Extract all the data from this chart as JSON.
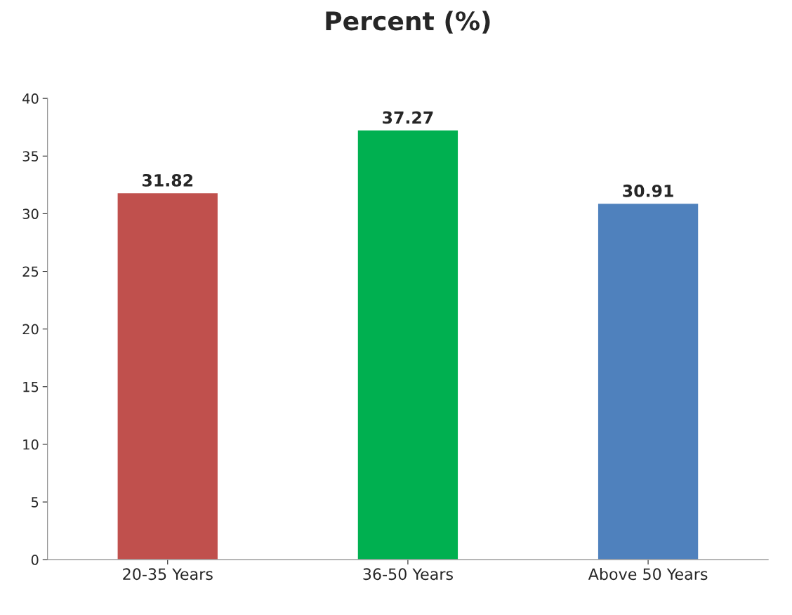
{
  "chart_data": {
    "type": "bar",
    "title": "Percent (%)",
    "categories": [
      "20-35 Years",
      "36-50 Years",
      "Above 50 Years"
    ],
    "values": [
      31.82,
      37.27,
      30.91
    ],
    "colors": [
      "#c0504d",
      "#00b050",
      "#4f81bd"
    ],
    "ylim": [
      0,
      40
    ],
    "yticks": [
      0,
      5,
      10,
      15,
      20,
      25,
      30,
      35,
      40
    ],
    "grid": false,
    "data_labels": true,
    "legend": false
  }
}
